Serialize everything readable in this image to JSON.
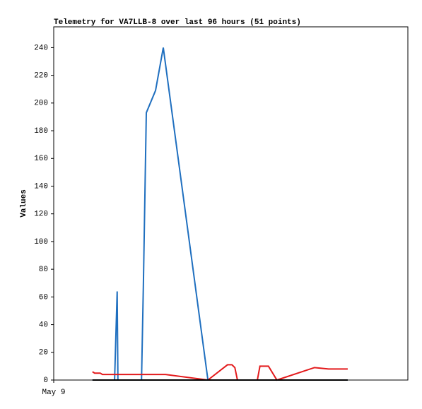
{
  "chart_data": {
    "type": "line",
    "title": "Telemetry for VA7LLB-8 over last 96 hours (51 points)",
    "y_label": "Values",
    "xlim": [
      0,
      96
    ],
    "xticks": [
      {
        "value": 0,
        "label": "May 9"
      }
    ],
    "ylim": [
      0,
      255
    ],
    "yticks": [
      0,
      20,
      40,
      60,
      80,
      100,
      120,
      140,
      160,
      180,
      200,
      220,
      240
    ],
    "series": [
      {
        "color": "#1f6fbf",
        "x": [
          10.5,
          16.5,
          17.2,
          17.4,
          23.8,
          24.3,
          25.1,
          27.6,
          29.7,
          41.8,
          79.7
        ],
        "values": [
          0,
          0,
          64,
          0,
          0,
          68,
          193,
          209,
          240,
          0,
          0
        ]
      },
      {
        "color": "#e31a1c",
        "x": [
          10.5,
          11.1,
          12.6,
          13.2,
          30.3,
          41.8,
          47.1,
          48.3,
          49.1,
          49.8,
          55.2,
          55.9,
          58.2,
          60.5,
          70.7,
          74.5,
          79.7
        ],
        "values": [
          6,
          5,
          5,
          4,
          4,
          0,
          11,
          11,
          9,
          0,
          0,
          10,
          10,
          0,
          9,
          8,
          8
        ]
      },
      {
        "color": "#000000",
        "x": [
          10.5,
          79.7
        ],
        "values": [
          0,
          0
        ]
      }
    ]
  }
}
